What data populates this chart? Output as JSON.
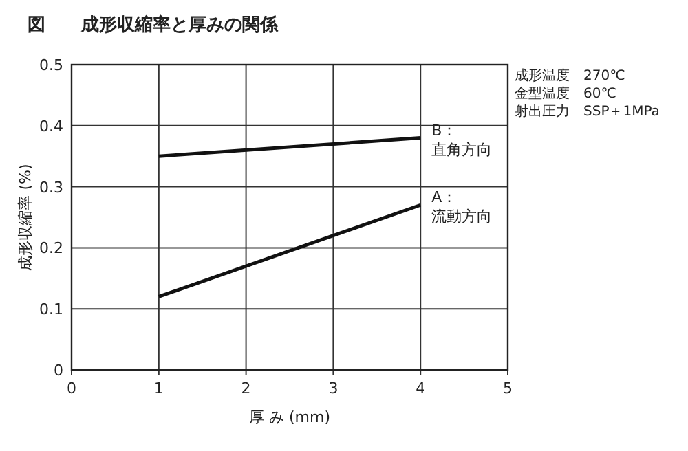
{
  "chart_data": {
    "type": "line",
    "title": "図　　成形収縮率と厚みの関係",
    "xlabel": "厚 み (mm)",
    "ylabel": "成形収縮率 (%)",
    "x": [
      1,
      4
    ],
    "series": [
      {
        "name": "B：直角方向",
        "color": "#111111",
        "values": [
          0.35,
          0.38
        ]
      },
      {
        "name": "A：流動方向",
        "color": "#111111",
        "values": [
          0.12,
          0.27
        ]
      }
    ],
    "xlim": [
      0,
      5
    ],
    "xticks": [
      0,
      1,
      2,
      3,
      4,
      5
    ],
    "ylim": [
      0,
      0.5
    ],
    "yticks": [
      0,
      0.1,
      0.2,
      0.3,
      0.4,
      0.5
    ],
    "grid": true,
    "marker": "none",
    "line_style": "solid",
    "annotations": [
      "成形温度　270℃",
      "金型温度　60℃",
      "射出圧力　SSP＋1MPa"
    ]
  }
}
